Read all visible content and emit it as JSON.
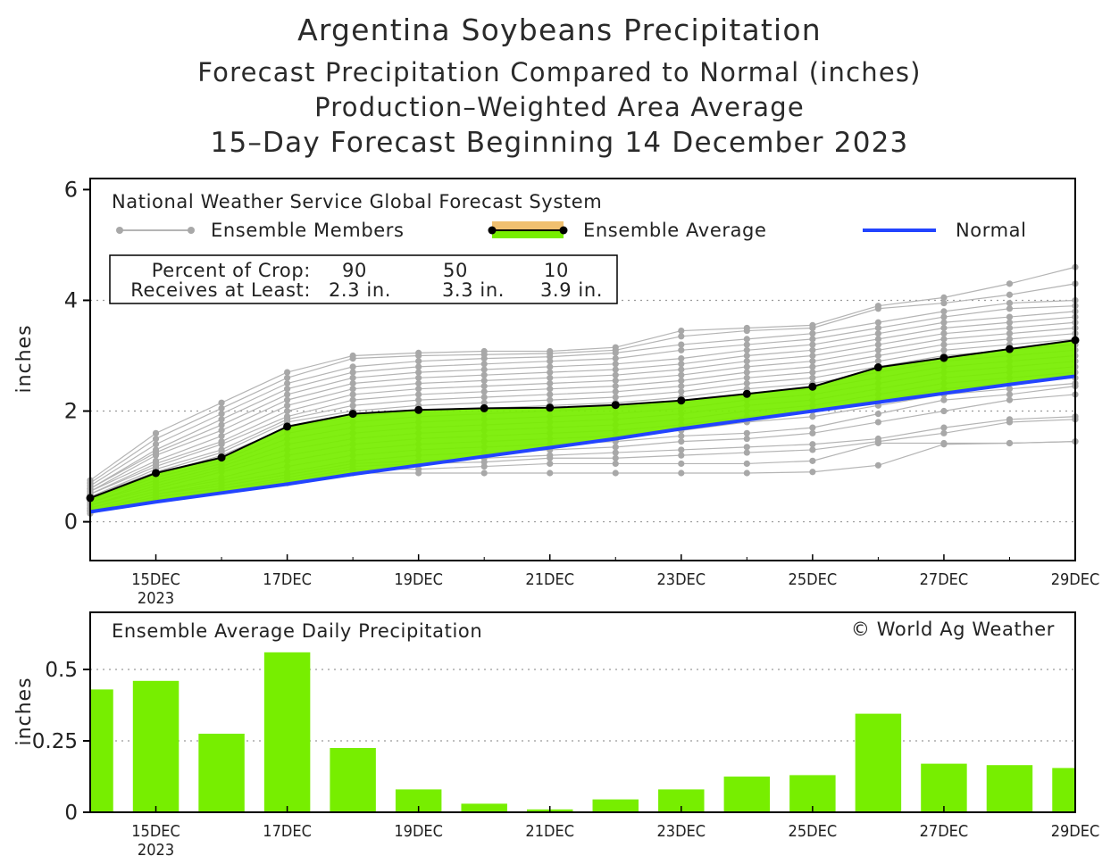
{
  "titles": {
    "main": "Argentina Soybeans Precipitation",
    "line2": "Forecast Precipitation Compared to Normal (inches)",
    "line3": "Production–Weighted Area Average",
    "line4": "15–Day Forecast Beginning 14 December 2023"
  },
  "legend": {
    "model": "National Weather Service Global Forecast System",
    "members": "Ensemble Members",
    "average": "Ensemble Average",
    "normal": "Normal"
  },
  "crop_table": {
    "row1_label": "Percent of Crop:",
    "row2_label": "Receives at Least:",
    "percents": [
      "90",
      "50",
      "10"
    ],
    "amounts": [
      "2.3 in.",
      "3.3 in.",
      "3.9 in."
    ]
  },
  "bottom": {
    "title": "Ensemble Average Daily Precipitation",
    "credit": "© World Ag Weather"
  },
  "colors": {
    "green": "#77ee00",
    "blue": "#2244ff",
    "member": "#b4b4b4",
    "member_dot": "#a8a8a8",
    "orange": "#f0c070"
  },
  "chart_data": [
    {
      "type": "line",
      "title": "Forecast Precipitation Compared to Normal (inches)",
      "ylabel": "inches",
      "xlabel": "",
      "ylim": [
        -0.7,
        6.2
      ],
      "yticks": [
        "0",
        "2",
        "4",
        "6"
      ],
      "ytick_values": [
        0,
        2,
        4,
        6
      ],
      "grid_values": [
        0,
        2,
        4
      ],
      "x_days": [
        14,
        15,
        16,
        17,
        18,
        19,
        20,
        21,
        22,
        23,
        24,
        25,
        26,
        27,
        28,
        29
      ],
      "x_tick_days": [
        15,
        17,
        19,
        21,
        23,
        25,
        27,
        29
      ],
      "x_tick_labels": [
        "15DEC",
        "17DEC",
        "19DEC",
        "21DEC",
        "23DEC",
        "25DEC",
        "27DEC",
        "29DEC"
      ],
      "year_label": "2023",
      "series": [
        {
          "name": "Ensemble Average",
          "values": [
            0.43,
            0.88,
            1.16,
            1.72,
            1.95,
            2.02,
            2.05,
            2.06,
            2.11,
            2.19,
            2.31,
            2.44,
            2.79,
            2.96,
            3.12,
            3.28
          ]
        },
        {
          "name": "Normal",
          "values": [
            0.18,
            0.36,
            0.52,
            0.68,
            0.86,
            1.02,
            1.18,
            1.34,
            1.5,
            1.68,
            1.84,
            2.0,
            2.16,
            2.32,
            2.48,
            2.63
          ]
        }
      ],
      "members": [
        [
          0.75,
          1.6,
          2.15,
          2.7,
          3.0,
          3.05,
          3.08,
          3.08,
          3.15,
          3.45,
          3.5,
          3.55,
          3.9,
          4.05,
          4.3,
          4.6
        ],
        [
          0.7,
          1.5,
          2.05,
          2.6,
          2.95,
          3.0,
          3.02,
          3.04,
          3.1,
          3.35,
          3.45,
          3.5,
          3.85,
          3.95,
          4.1,
          4.3
        ],
        [
          0.65,
          1.4,
          1.95,
          2.5,
          2.8,
          2.9,
          2.95,
          2.98,
          3.05,
          3.2,
          3.3,
          3.4,
          3.6,
          3.8,
          3.95,
          4.0
        ],
        [
          0.6,
          1.3,
          1.85,
          2.4,
          2.7,
          2.8,
          2.85,
          2.9,
          2.95,
          3.1,
          3.2,
          3.3,
          3.5,
          3.7,
          3.85,
          3.9
        ],
        [
          0.6,
          1.25,
          1.75,
          2.3,
          2.6,
          2.7,
          2.75,
          2.8,
          2.85,
          2.95,
          3.1,
          3.2,
          3.4,
          3.6,
          3.7,
          3.8
        ],
        [
          0.55,
          1.2,
          1.65,
          2.2,
          2.5,
          2.6,
          2.65,
          2.7,
          2.75,
          2.85,
          3.0,
          3.1,
          3.3,
          3.5,
          3.6,
          3.7
        ],
        [
          0.55,
          1.1,
          1.55,
          2.1,
          2.4,
          2.5,
          2.55,
          2.6,
          2.65,
          2.75,
          2.9,
          3.0,
          3.2,
          3.4,
          3.5,
          3.6
        ],
        [
          0.5,
          1.05,
          1.45,
          2.0,
          2.3,
          2.4,
          2.45,
          2.5,
          2.55,
          2.65,
          2.8,
          2.9,
          3.1,
          3.3,
          3.4,
          3.5
        ],
        [
          0.5,
          1.0,
          1.4,
          1.9,
          2.2,
          2.3,
          2.35,
          2.4,
          2.45,
          2.55,
          2.7,
          2.8,
          3.0,
          3.2,
          3.3,
          3.4
        ],
        [
          0.45,
          0.95,
          1.3,
          1.85,
          2.1,
          2.2,
          2.25,
          2.3,
          2.35,
          2.45,
          2.6,
          2.7,
          2.9,
          3.1,
          3.2,
          3.3
        ],
        [
          0.45,
          0.9,
          1.25,
          1.8,
          2.0,
          2.1,
          2.15,
          2.2,
          2.25,
          2.35,
          2.5,
          2.6,
          2.8,
          3.0,
          3.1,
          3.2
        ],
        [
          0.4,
          0.85,
          1.2,
          1.7,
          1.9,
          2.0,
          2.05,
          2.1,
          2.15,
          2.25,
          2.4,
          2.5,
          2.7,
          2.9,
          3.0,
          3.1
        ],
        [
          0.4,
          0.8,
          1.1,
          1.6,
          1.8,
          1.9,
          1.95,
          2.0,
          2.05,
          2.15,
          2.3,
          2.4,
          2.6,
          2.8,
          2.9,
          3.0
        ],
        [
          0.35,
          0.75,
          1.05,
          1.5,
          1.7,
          1.8,
          1.85,
          1.9,
          1.95,
          2.05,
          2.2,
          2.3,
          2.5,
          2.7,
          2.8,
          2.9
        ],
        [
          0.35,
          0.7,
          1.0,
          1.4,
          1.6,
          1.7,
          1.75,
          1.8,
          1.85,
          1.95,
          2.1,
          2.2,
          2.4,
          2.6,
          2.7,
          2.8
        ],
        [
          0.3,
          0.65,
          0.95,
          1.3,
          1.5,
          1.6,
          1.65,
          1.7,
          1.75,
          1.85,
          2.0,
          2.1,
          2.3,
          2.5,
          2.6,
          2.7
        ],
        [
          0.3,
          0.6,
          0.9,
          1.2,
          1.4,
          1.5,
          1.55,
          1.6,
          1.65,
          1.75,
          1.9,
          2.0,
          2.2,
          2.4,
          2.5,
          2.6
        ],
        [
          0.25,
          0.55,
          0.8,
          1.1,
          1.3,
          1.4,
          1.45,
          1.5,
          1.55,
          1.65,
          1.8,
          1.9,
          2.1,
          2.3,
          2.4,
          2.5
        ],
        [
          0.25,
          0.55,
          0.75,
          1.0,
          1.2,
          1.3,
          1.35,
          1.4,
          1.45,
          1.55,
          1.6,
          1.7,
          1.95,
          2.2,
          2.3,
          2.45
        ],
        [
          0.2,
          0.5,
          0.7,
          0.9,
          1.1,
          1.2,
          1.25,
          1.3,
          1.35,
          1.45,
          1.5,
          1.6,
          1.8,
          2.0,
          2.2,
          2.3
        ],
        [
          0.2,
          0.5,
          0.65,
          0.85,
          1.05,
          1.1,
          1.15,
          1.2,
          1.25,
          1.3,
          1.35,
          1.4,
          1.5,
          1.7,
          1.85,
          1.9
        ],
        [
          0.2,
          0.45,
          0.6,
          0.8,
          1.0,
          1.05,
          1.08,
          1.15,
          1.15,
          1.2,
          1.25,
          1.3,
          1.45,
          1.6,
          1.8,
          1.85
        ],
        [
          0.2,
          0.45,
          0.6,
          0.75,
          0.95,
          0.95,
          1.0,
          1.05,
          1.05,
          1.05,
          1.05,
          1.1,
          1.42,
          1.42,
          1.42,
          1.45
        ],
        [
          0.15,
          0.4,
          0.55,
          0.7,
          0.88,
          0.88,
          0.88,
          0.88,
          0.88,
          0.88,
          0.88,
          0.9,
          1.02,
          1.4,
          1.42,
          1.45
        ]
      ]
    },
    {
      "type": "bar",
      "title": "Ensemble Average Daily Precipitation",
      "ylabel": "inches",
      "xlabel": "",
      "ylim": [
        0,
        0.7
      ],
      "yticks": [
        "0",
        "0.25",
        "0.5"
      ],
      "ytick_values": [
        0,
        0.25,
        0.5
      ],
      "grid_values": [
        0.25,
        0.5
      ],
      "x_days": [
        14,
        15,
        16,
        17,
        18,
        19,
        20,
        21,
        22,
        23,
        24,
        25,
        26,
        27,
        28,
        29
      ],
      "x_tick_days": [
        15,
        17,
        19,
        21,
        23,
        25,
        27,
        29
      ],
      "x_tick_labels": [
        "15DEC",
        "17DEC",
        "19DEC",
        "21DEC",
        "23DEC",
        "25DEC",
        "27DEC",
        "29DEC"
      ],
      "year_label": "2023",
      "values": [
        0.43,
        0.46,
        0.275,
        0.56,
        0.225,
        0.08,
        0.03,
        0.01,
        0.045,
        0.08,
        0.125,
        0.13,
        0.345,
        0.17,
        0.165,
        0.155
      ]
    }
  ]
}
